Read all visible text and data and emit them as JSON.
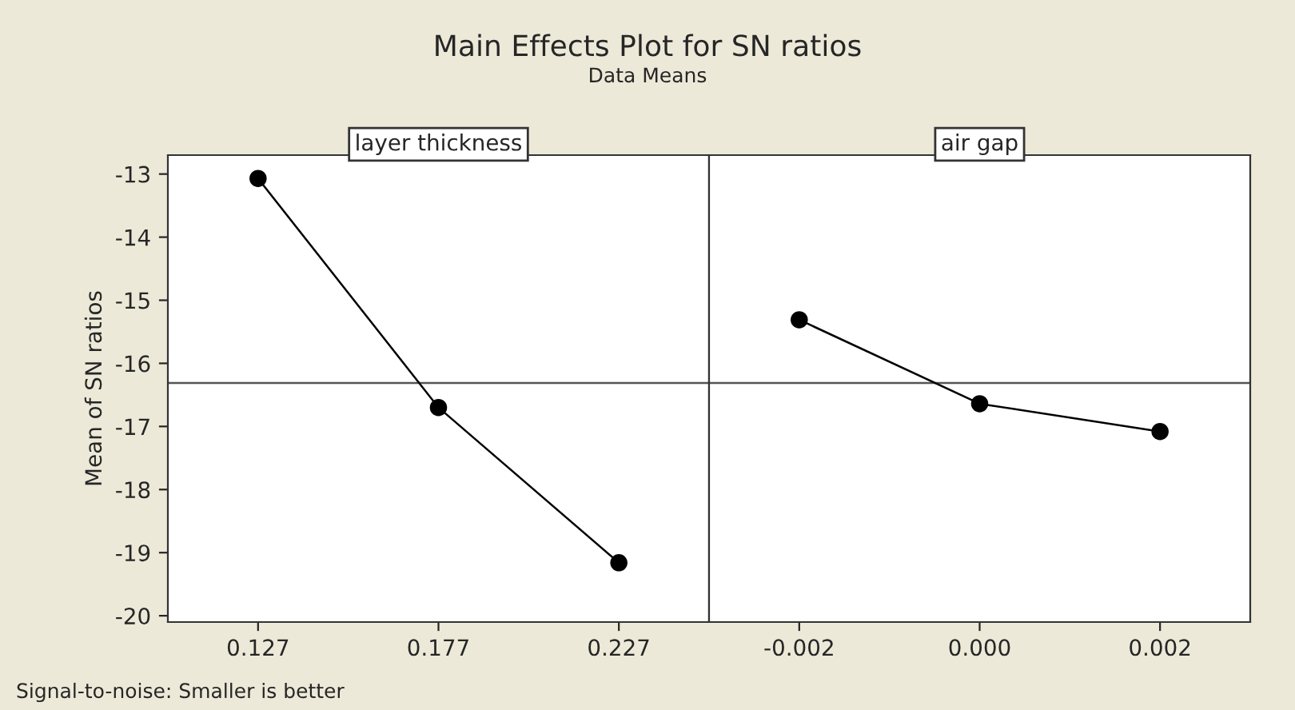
{
  "chart_data": [
    {
      "type": "line",
      "title": "Main Effects Plot for SN ratios",
      "subtitle": "Data Means",
      "xlabel": "layer thickness",
      "ylabel": "Mean of SN ratios",
      "categories": [
        "0.127",
        "0.177",
        "0.227"
      ],
      "series": [
        {
          "color": "#000000",
          "values": [
            -13.07,
            -16.7,
            -19.16
          ]
        }
      ],
      "ylim": [
        -20.1,
        -12.7
      ],
      "yticks": [
        -20,
        -19,
        -18,
        -17,
        -16,
        -15,
        -14,
        -13
      ],
      "ref_lines": [
        {
          "axis": "y",
          "value": -16.31,
          "color": "#555555"
        }
      ],
      "marker": "circle",
      "grid": false,
      "annotations": [
        "Signal-to-noise: Smaller is better"
      ]
    },
    {
      "type": "line",
      "xlabel": "air gap",
      "categories": [
        "-0.002",
        "0.000",
        "0.002"
      ],
      "series": [
        {
          "color": "#000000",
          "values": [
            -15.31,
            -16.64,
            -17.08
          ]
        }
      ],
      "ylim": [
        -20.1,
        -12.7
      ],
      "tick_labels": "x",
      "ref_lines": [
        {
          "axis": "y",
          "value": -16.31,
          "color": "#555555"
        }
      ],
      "marker": "circle",
      "grid": false
    }
  ]
}
